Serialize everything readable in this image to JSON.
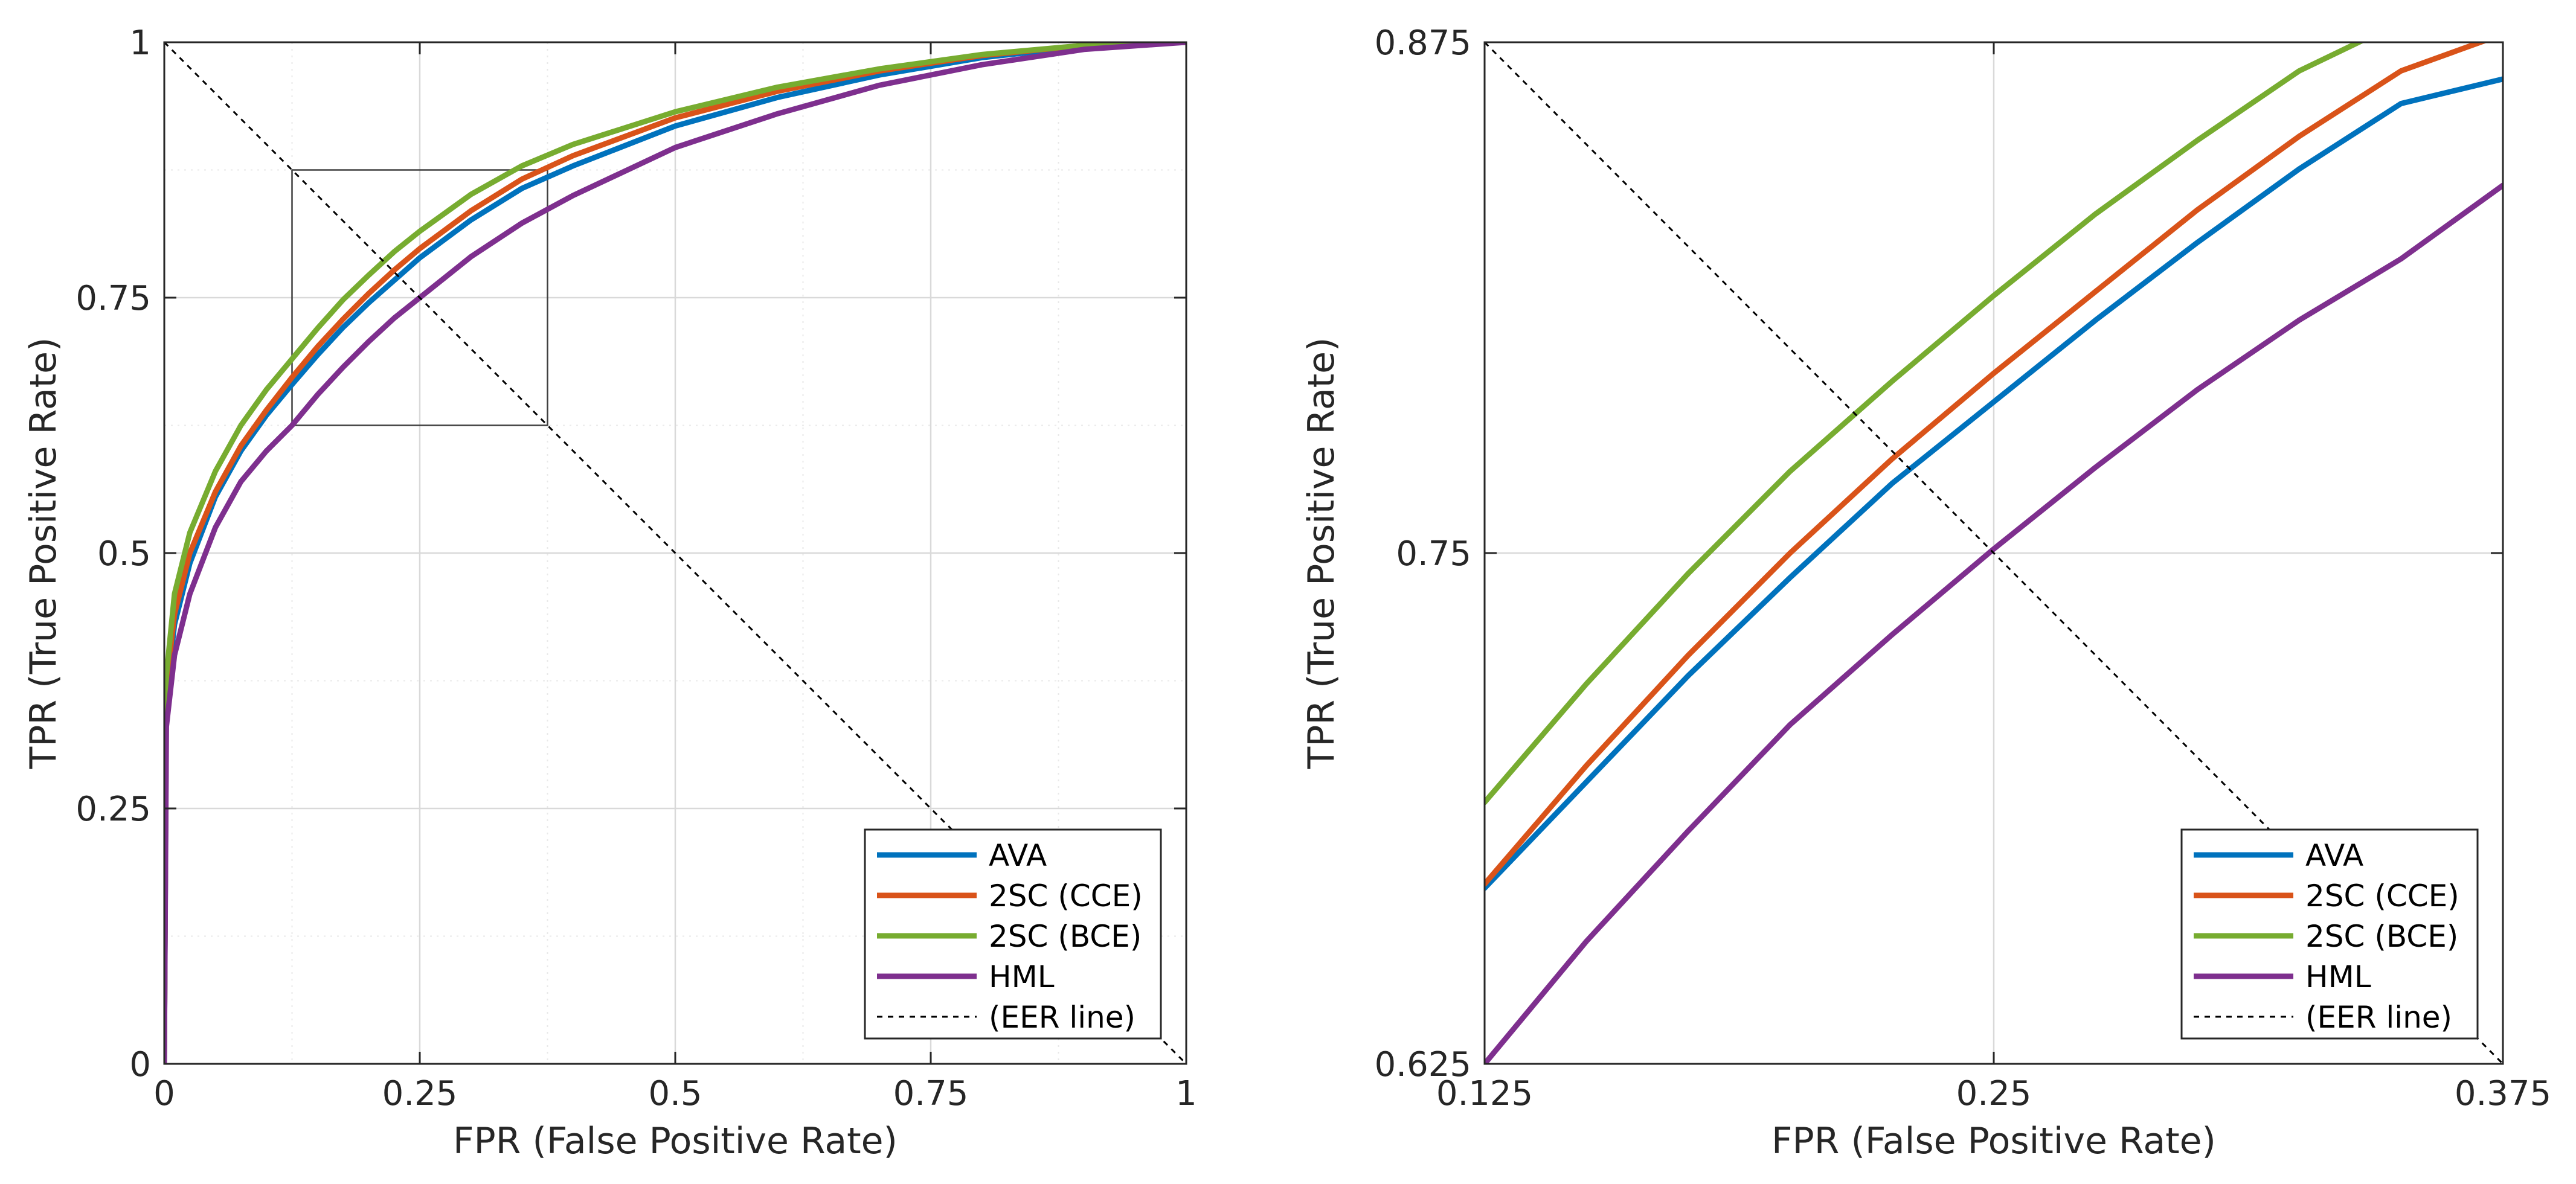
{
  "chart_data": [
    {
      "type": "line",
      "xlabel": "FPR (False Positive Rate)",
      "ylabel": "TPR (True Positive Rate)",
      "xlim": [
        0,
        1
      ],
      "ylim": [
        0,
        1
      ],
      "xticks": [
        0,
        0.25,
        0.5,
        0.75,
        1
      ],
      "yticks": [
        0,
        0.25,
        0.5,
        0.75,
        1
      ],
      "xtick_labels": [
        "0",
        "0.25",
        "0.5",
        "0.75",
        "1"
      ],
      "ytick_labels": [
        "0",
        "0.25",
        "0.5",
        "0.75",
        "1"
      ],
      "grid": true,
      "minor_grid": true,
      "legend_position": "bottom-right",
      "zoom_box": {
        "x": [
          0.125,
          0.375
        ],
        "y": [
          0.625,
          0.875
        ]
      },
      "series": [
        {
          "name": "AVA",
          "color": "#0072BD",
          "x": [
            0,
            0.002,
            0.01,
            0.025,
            0.05,
            0.075,
            0.1,
            0.125,
            0.15,
            0.175,
            0.2,
            0.225,
            0.25,
            0.3,
            0.35,
            0.4,
            0.5,
            0.6,
            0.7,
            0.8,
            0.9,
            1
          ],
          "y": [
            0,
            0.36,
            0.43,
            0.49,
            0.555,
            0.6,
            0.635,
            0.665,
            0.694,
            0.721,
            0.745,
            0.767,
            0.789,
            0.826,
            0.857,
            0.879,
            0.918,
            0.946,
            0.968,
            0.985,
            0.996,
            1
          ]
        },
        {
          "name": "2SC (CCE)",
          "color": "#D95319",
          "x": [
            0,
            0.002,
            0.01,
            0.025,
            0.05,
            0.075,
            0.1,
            0.125,
            0.15,
            0.175,
            0.2,
            0.225,
            0.25,
            0.3,
            0.35,
            0.4,
            0.5,
            0.6,
            0.7,
            0.8,
            0.9,
            1
          ],
          "y": [
            0,
            0.37,
            0.44,
            0.5,
            0.56,
            0.605,
            0.64,
            0.672,
            0.702,
            0.729,
            0.754,
            0.777,
            0.798,
            0.835,
            0.866,
            0.889,
            0.926,
            0.952,
            0.972,
            0.987,
            0.997,
            1
          ]
        },
        {
          "name": "2SC (BCE)",
          "color": "#77AC30",
          "x": [
            0,
            0.002,
            0.01,
            0.025,
            0.05,
            0.075,
            0.1,
            0.125,
            0.15,
            0.175,
            0.2,
            0.225,
            0.25,
            0.3,
            0.35,
            0.4,
            0.5,
            0.6,
            0.7,
            0.8,
            0.9,
            1
          ],
          "y": [
            0,
            0.38,
            0.46,
            0.52,
            0.58,
            0.625,
            0.66,
            0.69,
            0.72,
            0.748,
            0.772,
            0.795,
            0.815,
            0.851,
            0.879,
            0.9,
            0.932,
            0.956,
            0.974,
            0.988,
            0.997,
            1
          ]
        },
        {
          "name": "HML",
          "color": "#7E2F8E",
          "x": [
            0,
            0.002,
            0.01,
            0.025,
            0.05,
            0.075,
            0.1,
            0.125,
            0.15,
            0.175,
            0.2,
            0.225,
            0.25,
            0.3,
            0.35,
            0.4,
            0.5,
            0.6,
            0.7,
            0.8,
            0.9,
            1
          ],
          "y": [
            0,
            0.33,
            0.4,
            0.46,
            0.525,
            0.57,
            0.6,
            0.625,
            0.655,
            0.682,
            0.707,
            0.73,
            0.75,
            0.79,
            0.823,
            0.85,
            0.897,
            0.93,
            0.958,
            0.978,
            0.993,
            1
          ]
        },
        {
          "name": "(EER line)",
          "color": "#000000",
          "style": "dashed",
          "x": [
            0,
            1
          ],
          "y": [
            1,
            0
          ]
        }
      ]
    },
    {
      "type": "line",
      "xlabel": "FPR (False Positive Rate)",
      "ylabel": "TPR (True Positive Rate)",
      "xlim": [
        0.125,
        0.375
      ],
      "ylim": [
        0.625,
        0.875
      ],
      "xticks": [
        0.125,
        0.25,
        0.375
      ],
      "yticks": [
        0.625,
        0.75,
        0.875
      ],
      "xtick_labels": [
        "0.125",
        "0.25",
        "0.375"
      ],
      "ytick_labels": [
        "0.625",
        "0.75",
        "0.875"
      ],
      "grid": true,
      "legend_position": "bottom-right",
      "series": [
        {
          "name": "AVA",
          "color": "#0072BD",
          "x": [
            0.125,
            0.15,
            0.175,
            0.2,
            0.225,
            0.25,
            0.275,
            0.3,
            0.325,
            0.35,
            0.375
          ],
          "y": [
            0.668,
            0.694,
            0.72,
            0.744,
            0.767,
            0.787,
            0.807,
            0.826,
            0.844,
            0.86,
            0.866
          ]
        },
        {
          "name": "2SC (CCE)",
          "color": "#D95319",
          "x": [
            0.125,
            0.15,
            0.175,
            0.2,
            0.225,
            0.25,
            0.275,
            0.3,
            0.325,
            0.35,
            0.375
          ],
          "y": [
            0.669,
            0.698,
            0.725,
            0.75,
            0.773,
            0.794,
            0.814,
            0.834,
            0.852,
            0.868,
            0.877
          ]
        },
        {
          "name": "2SC (BCE)",
          "color": "#77AC30",
          "x": [
            0.125,
            0.15,
            0.175,
            0.2,
            0.225,
            0.25,
            0.275,
            0.3,
            0.325,
            0.35,
            0.375
          ],
          "y": [
            0.689,
            0.718,
            0.745,
            0.77,
            0.792,
            0.813,
            0.833,
            0.851,
            0.868,
            0.88,
            0.885
          ]
        },
        {
          "name": "HML",
          "color": "#7E2F8E",
          "x": [
            0.125,
            0.15,
            0.175,
            0.2,
            0.225,
            0.25,
            0.275,
            0.3,
            0.325,
            0.35,
            0.375
          ],
          "y": [
            0.625,
            0.655,
            0.682,
            0.708,
            0.73,
            0.751,
            0.771,
            0.79,
            0.807,
            0.822,
            0.84
          ]
        },
        {
          "name": "(EER line)",
          "color": "#000000",
          "style": "dashed",
          "x": [
            0.125,
            0.375
          ],
          "y": [
            0.875,
            0.625
          ]
        }
      ]
    }
  ]
}
